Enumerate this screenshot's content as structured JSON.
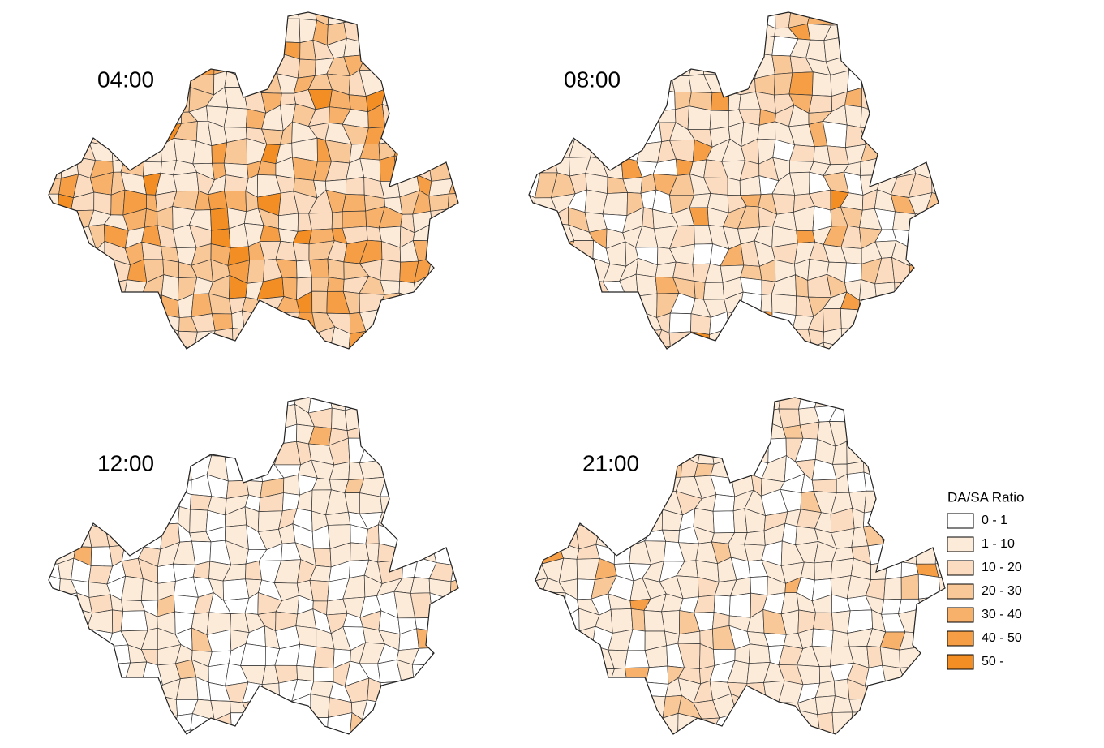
{
  "panels": [
    {
      "label": "04:00"
    },
    {
      "label": "08:00"
    },
    {
      "label": "12:00"
    },
    {
      "label": "21:00"
    }
  ],
  "legend": {
    "title": "DA/SA Ratio",
    "items": [
      {
        "label": "0 - 1",
        "color": "#ffffff"
      },
      {
        "label": "1 - 10",
        "color": "#fdebd9"
      },
      {
        "label": "10 - 20",
        "color": "#fbdcc0"
      },
      {
        "label": "20 - 30",
        "color": "#f9c898"
      },
      {
        "label": "30 - 40",
        "color": "#f7b16b"
      },
      {
        "label": "40 - 50",
        "color": "#f59e45"
      },
      {
        "label": "50 -",
        "color": "#f28e24"
      }
    ]
  }
}
